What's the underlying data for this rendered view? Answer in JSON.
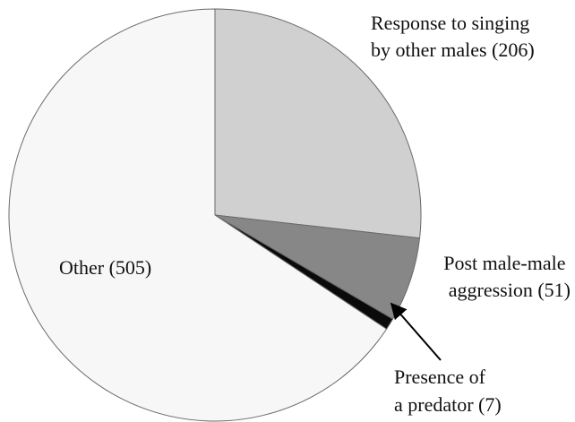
{
  "chart_data": {
    "type": "pie",
    "title": "",
    "start_angle_deg": 0,
    "direction": "clockwise",
    "slices": [
      {
        "label_lines": [
          "Response to singing",
          "by other males (206)"
        ],
        "category": "Response to singing by other males",
        "value": 206,
        "color": "#d0d0d0"
      },
      {
        "label_lines": [
          "Post male-male",
          "aggression (51)"
        ],
        "category": "Post male-male aggression",
        "value": 51,
        "color": "#878787"
      },
      {
        "label_lines": [
          "Presence of",
          "a predator (7)"
        ],
        "category": "Presence of a predator",
        "value": 7,
        "color": "#0a0a0a"
      },
      {
        "label_lines": [
          "Other (505)"
        ],
        "category": "Other",
        "value": 505,
        "color": "#f7f7f7"
      }
    ],
    "annotations": [
      {
        "type": "arrow",
        "points_to": "Presence of a predator"
      }
    ]
  }
}
